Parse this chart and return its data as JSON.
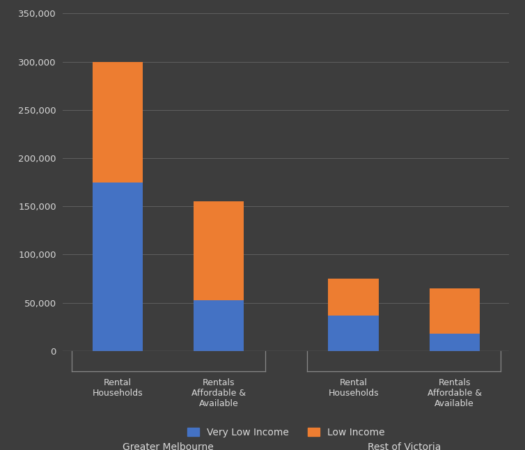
{
  "very_low_income": [
    175000,
    53000,
    37000,
    18000
  ],
  "low_income": [
    125000,
    102000,
    38000,
    47000
  ],
  "color_very_low": "#4472C4",
  "color_low": "#ED7D31",
  "background_color": "#3d3d3d",
  "text_color": "#d9d9d9",
  "grid_color": "#606060",
  "ylim": [
    0,
    350000
  ],
  "yticks": [
    0,
    50000,
    100000,
    150000,
    200000,
    250000,
    300000,
    350000
  ],
  "ytick_labels": [
    "0",
    "50,000",
    "100,000",
    "150,000",
    "200,000",
    "250,000",
    "300,000",
    "350,000"
  ],
  "legend_labels": [
    "Very Low Income",
    "Low Income"
  ],
  "group_labels": [
    "Greater Melbourne",
    "Rest of Victoria"
  ],
  "bar_labels": [
    "Rental\nHouseholds",
    "Rentals\nAffordable &\nAvailable",
    "Rental\nHouseholds",
    "Rentals\nAffordable &\nAvailable"
  ],
  "bar_width": 0.6,
  "positions": [
    0.5,
    1.7,
    3.3,
    4.5
  ]
}
